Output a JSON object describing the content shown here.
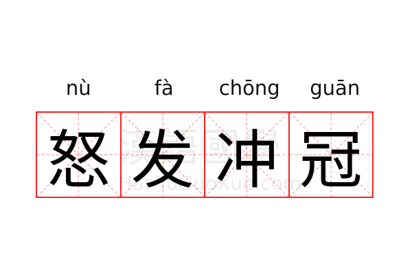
{
  "idiom": {
    "pinyin": [
      "nù",
      "fà",
      "chōng",
      "guān"
    ],
    "characters": [
      "怒",
      "发",
      "冲",
      "冠"
    ]
  },
  "watermark": {
    "chinese": "漢語國學",
    "latin": "HanYuGuoXue.com"
  },
  "colors": {
    "grid_border": "#ff2222",
    "grid_guides": "#f7a0a0",
    "text": "#000000"
  }
}
